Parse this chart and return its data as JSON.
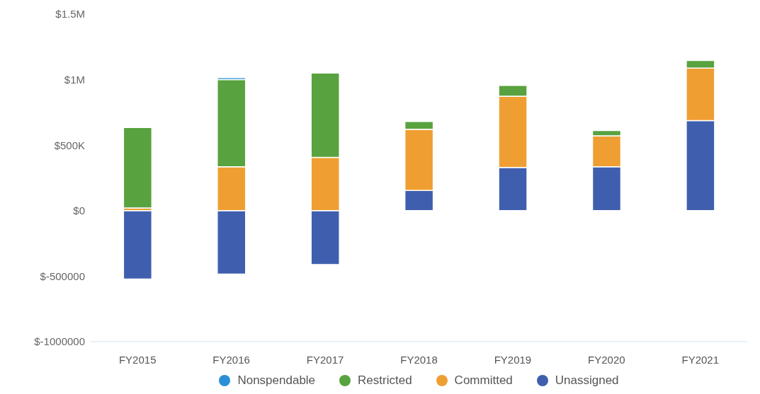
{
  "chart_data": {
    "type": "bar",
    "stacked": true,
    "categories": [
      "FY2015",
      "FY2016",
      "FY2017",
      "FY2018",
      "FY2019",
      "FY2020",
      "FY2021"
    ],
    "series": [
      {
        "name": "Unassigned",
        "color": "#3f5fae",
        "values": [
          -522000,
          -484000,
          -412000,
          154000,
          330000,
          335000,
          687000
        ]
      },
      {
        "name": "Committed",
        "color": "#ef9f32",
        "values": [
          20000,
          335000,
          407000,
          467000,
          544000,
          236000,
          401000
        ]
      },
      {
        "name": "Restricted",
        "color": "#58a23f",
        "values": [
          615000,
          665000,
          643000,
          60000,
          82000,
          41000,
          58000
        ]
      },
      {
        "name": "Nonspendable",
        "color": "#2a8fd6",
        "values": [
          0,
          15000,
          0,
          0,
          0,
          0,
          0
        ]
      }
    ],
    "ylim": [
      -1000000,
      1500000
    ],
    "yticks": [
      {
        "value": -1000000,
        "label": "$-1000000"
      },
      {
        "value": -500000,
        "label": "$-500000"
      },
      {
        "value": 0,
        "label": "$0"
      },
      {
        "value": 500000,
        "label": "$500K"
      },
      {
        "value": 1000000,
        "label": "$1M"
      },
      {
        "value": 1500000,
        "label": "$1.5M"
      }
    ],
    "grid": false,
    "legend": "bottom",
    "marker": "circle"
  }
}
